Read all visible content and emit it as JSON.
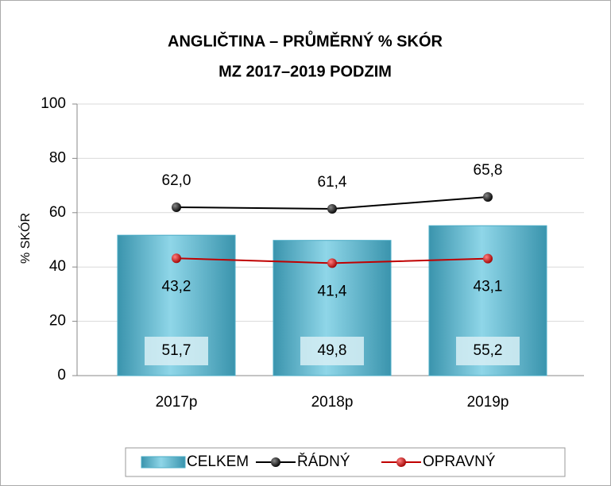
{
  "chart_data": {
    "type": "bar",
    "title": "ANGLIČTINA – PRŮMĚRNÝ % SKÓR",
    "subtitle": "MZ 2017–2019 PODZIM",
    "y_label": "% SKÓR",
    "categories": [
      "2017p",
      "2018p",
      "2019p"
    ],
    "series": [
      {
        "name": "CELKEM",
        "type": "bar",
        "color": "#4bacc6",
        "values": [
          51.7,
          49.8,
          55.2
        ],
        "value_labels": [
          "51,7",
          "49,8",
          "55,2"
        ]
      },
      {
        "name": "ŘÁDNÝ",
        "type": "line",
        "color": "#000000",
        "values": [
          62.0,
          61.4,
          65.8
        ],
        "value_labels": [
          "62,0",
          "61,4",
          "65,8"
        ]
      },
      {
        "name": "OPRAVNÝ",
        "type": "line",
        "color": "#c00000",
        "values": [
          43.2,
          41.4,
          43.1
        ],
        "value_labels": [
          "43,2",
          "41,4",
          "43,1"
        ]
      }
    ],
    "ylim": [
      0,
      100
    ],
    "yticks": [
      0,
      20,
      40,
      60,
      80,
      100
    ],
    "grid": true,
    "legend": "bottom"
  }
}
